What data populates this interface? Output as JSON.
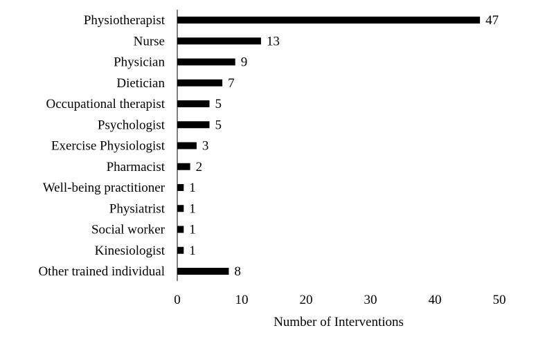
{
  "chart_data": {
    "type": "bar",
    "orientation": "horizontal",
    "categories": [
      "Physiotherapist",
      "Nurse",
      "Physician",
      "Dietician",
      "Occupational therapist",
      "Psychologist",
      "Exercise Physiologist",
      "Pharmacist",
      "Well-being practitioner",
      "Physiatrist",
      "Social worker",
      "Kinesiologist",
      "Other trained individual"
    ],
    "values": [
      47,
      13,
      9,
      7,
      5,
      5,
      3,
      2,
      1,
      1,
      1,
      1,
      8
    ],
    "title": "",
    "xlabel": "Number of Interventions",
    "ylabel": "",
    "xlim": [
      0,
      50
    ],
    "xticks": [
      0,
      10,
      20,
      30,
      40,
      50
    ],
    "grid": false,
    "bar_color": "#000000",
    "data_labels": true
  }
}
